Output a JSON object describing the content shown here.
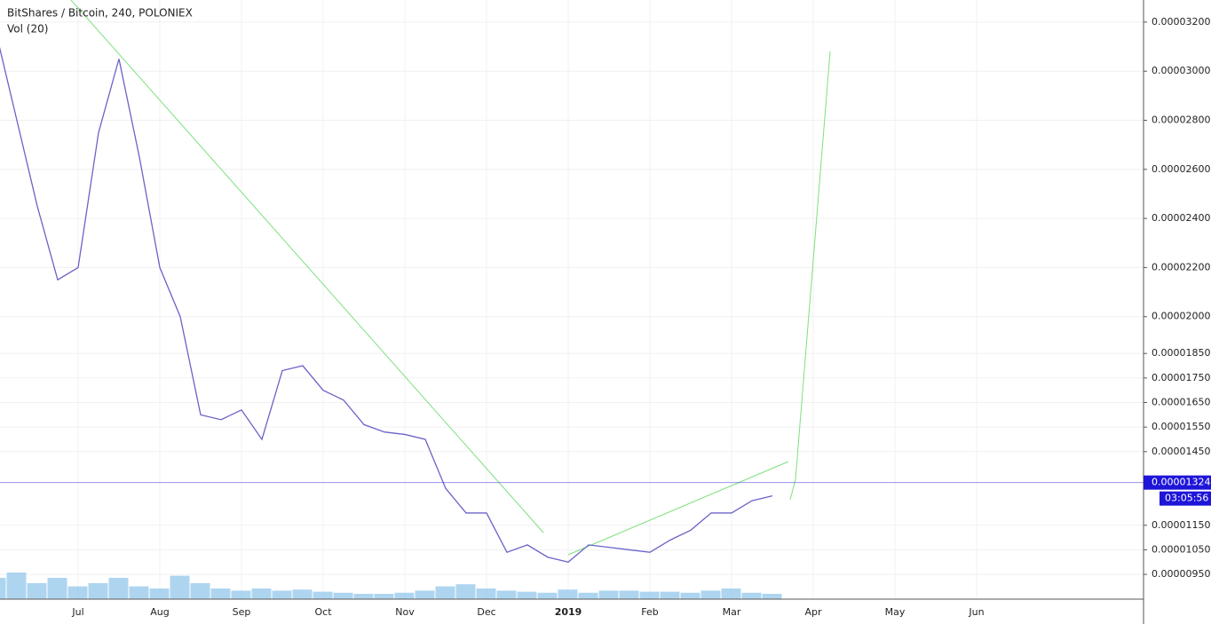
{
  "chart_data": {
    "type": "line",
    "title": "BitShares / Bitcoin, 240, POLONIEX",
    "volume_label": "Vol (20)",
    "categories": [
      null,
      null,
      null,
      null,
      "Jul",
      null,
      null,
      null,
      "Aug",
      null,
      null,
      null,
      "Sep",
      null,
      null,
      null,
      "Oct",
      null,
      null,
      null,
      "Nov",
      null,
      null,
      null,
      "Dec",
      null,
      null,
      null,
      "2019",
      null,
      null,
      null,
      "Feb",
      null,
      null,
      null,
      "Mar",
      null,
      null,
      null,
      "Apr",
      null,
      null,
      null,
      "May",
      null,
      null,
      null,
      "Jun",
      null,
      null,
      null,
      null,
      null,
      null,
      null
    ],
    "series": [
      {
        "name": "BitShares / Bitcoin",
        "color": "#6b63c9",
        "values": [
          3.15e-05,
          2.8e-05,
          2.45e-05,
          2.15e-05,
          2.2e-05,
          2.75e-05,
          3.05e-05,
          2.65e-05,
          2.2e-05,
          2e-05,
          1.6e-05,
          1.58e-05,
          1.62e-05,
          1.5e-05,
          1.78e-05,
          1.8e-05,
          1.7e-05,
          1.66e-05,
          1.56e-05,
          1.53e-05,
          1.52e-05,
          1.5e-05,
          1.3e-05,
          1.2e-05,
          1.2e-05,
          1.04e-05,
          1.07e-05,
          1.02e-05,
          1e-05,
          1.07e-05,
          1.06e-05,
          1.05e-05,
          1.04e-05,
          1.09e-05,
          1.13e-05,
          1.2e-05,
          1.2e-05,
          1.25e-05,
          1.27e-05,
          null,
          null,
          null,
          null,
          null,
          null,
          null,
          null,
          null,
          null,
          null,
          null,
          null,
          null,
          null,
          null,
          null
        ]
      }
    ],
    "volume": {
      "color": "#8cc3ea",
      "values": [
        20,
        25,
        15,
        20,
        12,
        15,
        20,
        12,
        10,
        22,
        15,
        10,
        8,
        10,
        8,
        9,
        7,
        6,
        5,
        5,
        6,
        8,
        12,
        14,
        10,
        8,
        7,
        6,
        9,
        6,
        8,
        8,
        7,
        7,
        6,
        8,
        10,
        6,
        5,
        null,
        null,
        null,
        null,
        null,
        null,
        null,
        null,
        null,
        null,
        null,
        null,
        null,
        null,
        null,
        null,
        null
      ]
    },
    "ylim": [
      8.49e-06,
      3.29e-05
    ],
    "yticks": [
      {
        "value": 3.2e-05,
        "label": "0.00003200"
      },
      {
        "value": 3e-05,
        "label": "0.00003000"
      },
      {
        "value": 2.8e-05,
        "label": "0.00002800"
      },
      {
        "value": 2.6e-05,
        "label": "0.00002600"
      },
      {
        "value": 2.4e-05,
        "label": "0.00002400"
      },
      {
        "value": 2.2e-05,
        "label": "0.00002200"
      },
      {
        "value": 2e-05,
        "label": "0.00002000"
      },
      {
        "value": 1.85e-05,
        "label": "0.00001850"
      },
      {
        "value": 1.75e-05,
        "label": "0.00001750"
      },
      {
        "value": 1.65e-05,
        "label": "0.00001650"
      },
      {
        "value": 1.55e-05,
        "label": "0.00001550"
      },
      {
        "value": 1.45e-05,
        "label": "0.00001450"
      },
      {
        "value": 1.15e-05,
        "label": "0.00001150"
      },
      {
        "value": 1.05e-05,
        "label": "0.00001050"
      },
      {
        "value": 9.5e-06,
        "label": "0.00000950"
      }
    ],
    "grid": true,
    "last_price": 1.324e-05,
    "last_price_color": "#1e15d9",
    "countdown": "03:05:56"
  }
}
